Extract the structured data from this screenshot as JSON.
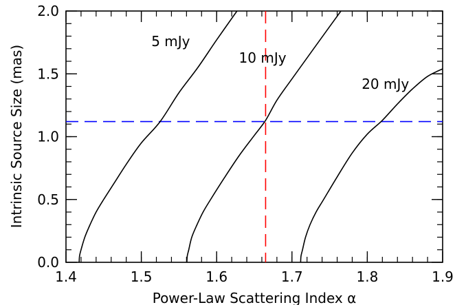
{
  "chart_data": {
    "type": "line",
    "title": "",
    "xlabel": "Power-Law Scattering Index α",
    "ylabel": "Intrinsic Source Size (mas)",
    "xlim": [
      1.4,
      1.9
    ],
    "ylim": [
      0.0,
      2.0
    ],
    "x_ticks": [
      "1.4",
      "1.5",
      "1.6",
      "1.7",
      "1.8",
      "1.9"
    ],
    "y_ticks": [
      "0.0",
      "0.5",
      "1.0",
      "1.5",
      "2.0"
    ],
    "x_minor_step": 0.02,
    "y_minor_step": 0.1,
    "grid": false,
    "series": [
      {
        "name": "5 mJy",
        "color": "#000000",
        "points": [
          [
            1.4175,
            0.0
          ],
          [
            1.418,
            0.05
          ],
          [
            1.42,
            0.1
          ],
          [
            1.425,
            0.2
          ],
          [
            1.432,
            0.3
          ],
          [
            1.44,
            0.4
          ],
          [
            1.45,
            0.5
          ],
          [
            1.465,
            0.64
          ],
          [
            1.48,
            0.78
          ],
          [
            1.5,
            0.95
          ],
          [
            1.525,
            1.12
          ],
          [
            1.55,
            1.35
          ],
          [
            1.575,
            1.55
          ],
          [
            1.6,
            1.77
          ],
          [
            1.627,
            2.0
          ]
        ]
      },
      {
        "name": "10 mJy",
        "color": "#000000",
        "points": [
          [
            1.5605,
            0.0
          ],
          [
            1.561,
            0.05
          ],
          [
            1.563,
            0.1
          ],
          [
            1.567,
            0.2
          ],
          [
            1.574,
            0.3
          ],
          [
            1.582,
            0.4
          ],
          [
            1.592,
            0.5
          ],
          [
            1.61,
            0.67
          ],
          [
            1.63,
            0.85
          ],
          [
            1.65,
            1.01
          ],
          [
            1.665,
            1.13
          ],
          [
            1.68,
            1.29
          ],
          [
            1.7,
            1.46
          ],
          [
            1.73,
            1.71
          ],
          [
            1.765,
            2.0
          ]
        ]
      },
      {
        "name": "20 mJy",
        "color": "#000000",
        "points": [
          [
            1.7115,
            0.0
          ],
          [
            1.712,
            0.05
          ],
          [
            1.714,
            0.1
          ],
          [
            1.718,
            0.2
          ],
          [
            1.724,
            0.3
          ],
          [
            1.732,
            0.4
          ],
          [
            1.742,
            0.5
          ],
          [
            1.76,
            0.68
          ],
          [
            1.78,
            0.87
          ],
          [
            1.8,
            1.02
          ],
          [
            1.82,
            1.13
          ],
          [
            1.84,
            1.26
          ],
          [
            1.86,
            1.38
          ],
          [
            1.88,
            1.48
          ],
          [
            1.9,
            1.54
          ]
        ]
      }
    ],
    "reference_lines": [
      {
        "orientation": "horizontal",
        "value": 1.12,
        "color": "#0000ff",
        "style": "dashed"
      },
      {
        "orientation": "vertical",
        "value": 1.665,
        "color": "#ff0000",
        "style": "dashed"
      }
    ],
    "annotations": [
      {
        "text": "5 mJy",
        "x": 1.539,
        "y": 1.72
      },
      {
        "text": "10 mJy",
        "x": 1.661,
        "y": 1.59
      },
      {
        "text": "20 mJy",
        "x": 1.824,
        "y": 1.38
      }
    ]
  }
}
